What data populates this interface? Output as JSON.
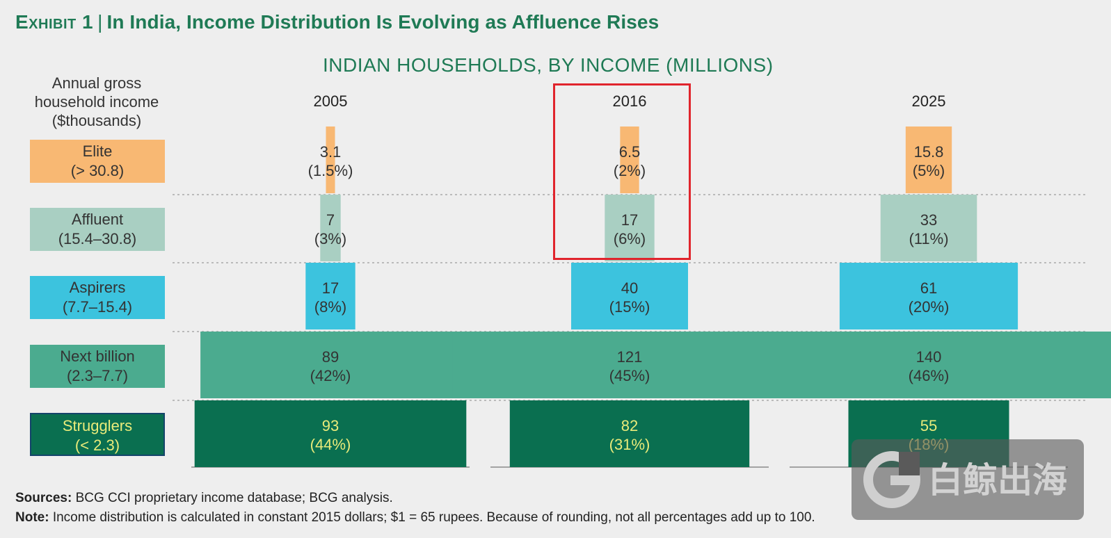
{
  "header": {
    "exhibit_label": "Exhibit 1",
    "separator": "|",
    "title": "In India, Income Distribution Is Evolving as Affluence Rises"
  },
  "chart_subtitle": "INDIAN HOUSEHOLDS, BY INCOME (MILLIONS)",
  "axis_caption": [
    "Annual gross",
    "household income",
    "($thousands)"
  ],
  "chart_data": {
    "type": "bar",
    "subtype": "population-pyramid",
    "title": "INDIAN HOUSEHOLDS, BY INCOME (MILLIONS)",
    "unit": "millions of households",
    "categories": [
      "Elite",
      "Affluent",
      "Aspirers",
      "Next billion",
      "Strugglers"
    ],
    "category_ranges": [
      "(> 30.8)",
      "(15.4–30.8)",
      "(7.7–15.4)",
      "(2.3–7.7)",
      "(< 2.3)"
    ],
    "series": [
      {
        "name": "2005",
        "values": [
          3.1,
          7,
          17,
          89,
          93
        ],
        "labels": [
          "3.1",
          "7",
          "17",
          "89",
          "93"
        ],
        "shares": [
          "(1.5%)",
          "(3%)",
          "(8%)",
          "(42%)",
          "(44%)"
        ]
      },
      {
        "name": "2016",
        "values": [
          6.5,
          17,
          40,
          121,
          82
        ],
        "labels": [
          "6.5",
          "17",
          "40",
          "121",
          "82"
        ],
        "shares": [
          "(2%)",
          "(6%)",
          "(15%)",
          "(45%)",
          "(31%)"
        ]
      },
      {
        "name": "2025",
        "values": [
          15.8,
          33,
          61,
          140,
          55
        ],
        "labels": [
          "15.8",
          "33",
          "61",
          "140",
          "55"
        ],
        "shares": [
          "(5%)",
          "(11%)",
          "(20%)",
          "(46%)",
          "(18%)"
        ]
      }
    ],
    "highlighted": {
      "series": "2016",
      "categories": [
        "Elite",
        "Affluent"
      ]
    },
    "colors": {
      "Elite": "#f8b873",
      "Affluent": "#a9cfc2",
      "Aspirers": "#3cc3de",
      "Next billion": "#4bab8f",
      "Strugglers": "#0a6f50",
      "highlight": "#e0242c"
    },
    "label_colors": {
      "Elite": "#333333",
      "Affluent": "#333333",
      "Aspirers": "#333333",
      "Next billion": "#333333",
      "Strugglers": "#e9eb7a"
    }
  },
  "footnotes": {
    "sources_label": "Sources:",
    "sources_text": " BCG CCI proprietary income database; BCG analysis.",
    "note_label": "Note:",
    "note_text": " Income distribution is calculated in constant 2015 dollars; $1 = 65 rupees. Because of rounding, not all percentages add up to 100."
  },
  "watermark": {
    "icon": "whale-logo-icon",
    "text": "白鲸出海"
  }
}
